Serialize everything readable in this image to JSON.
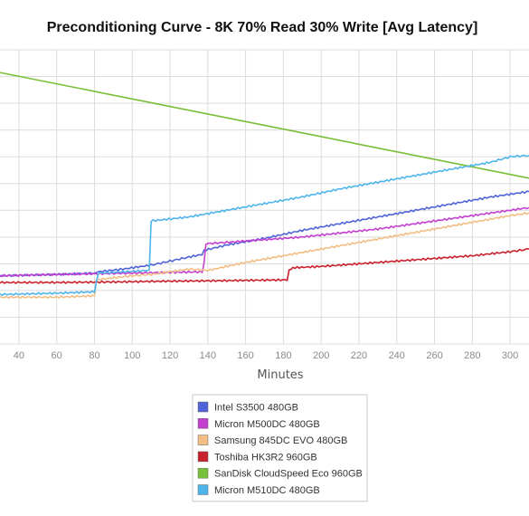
{
  "chart_data": {
    "type": "line",
    "title": "Preconditioning Curve - 8K 70% Read 30% Write [Avg Latency]",
    "xlabel": "Minutes",
    "ylabel": "",
    "xlim": [
      30,
      310
    ],
    "ylim": [
      0,
      11
    ],
    "x_ticks": [
      "40",
      "60",
      "80",
      "100",
      "120",
      "140",
      "160",
      "180",
      "200",
      "220",
      "240",
      "260",
      "280",
      "300"
    ],
    "x_tick_values": [
      40,
      60,
      80,
      100,
      120,
      140,
      160,
      180,
      200,
      220,
      240,
      260,
      280,
      300
    ],
    "grid": true,
    "legend_position": "bottom-center",
    "series": [
      {
        "name": "Intel S3500 480GB",
        "color": "#4f63d9",
        "x": [
          30,
          60,
          80,
          82,
          95,
          110,
          120,
          130,
          137,
          138,
          150,
          170,
          190,
          210,
          230,
          250,
          270,
          290,
          310
        ],
        "y": [
          2.55,
          2.6,
          2.65,
          2.7,
          2.8,
          2.95,
          3.1,
          3.25,
          3.35,
          3.5,
          3.7,
          3.95,
          4.25,
          4.5,
          4.75,
          5.0,
          5.25,
          5.5,
          5.7
        ]
      },
      {
        "name": "Micron M500DC 480GB",
        "color": "#c43fd0",
        "x": [
          30,
          60,
          100,
          137,
          138,
          139,
          150,
          170,
          190,
          210,
          230,
          250,
          270,
          290,
          310
        ],
        "y": [
          2.55,
          2.6,
          2.65,
          2.7,
          3.0,
          3.75,
          3.8,
          3.9,
          4.0,
          4.15,
          4.3,
          4.5,
          4.7,
          4.9,
          5.1
        ]
      },
      {
        "name": "Samsung 845DC EVO 480GB",
        "color": "#f1bd84",
        "x": [
          30,
          60,
          80,
          81,
          100,
          110,
          130,
          140,
          160,
          180,
          200,
          220,
          240,
          260,
          280,
          300,
          310
        ],
        "y": [
          1.75,
          1.75,
          1.8,
          2.4,
          2.55,
          2.6,
          2.8,
          2.75,
          3.05,
          3.3,
          3.55,
          3.8,
          4.05,
          4.3,
          4.55,
          4.8,
          4.9
        ]
      },
      {
        "name": "Toshiba HK3R2 960GB",
        "color": "#c8202c",
        "x": [
          30,
          60,
          90,
          120,
          150,
          182,
          183,
          185,
          200,
          220,
          240,
          260,
          280,
          300,
          310
        ],
        "y": [
          2.3,
          2.3,
          2.32,
          2.35,
          2.37,
          2.4,
          2.75,
          2.85,
          2.9,
          3.0,
          3.1,
          3.2,
          3.3,
          3.45,
          3.55
        ]
      },
      {
        "name": "SanDisk CloudSpeed Eco 960GB",
        "color": "#79c03a",
        "x": [
          30,
          310
        ],
        "y": [
          10.15,
          6.2
        ]
      },
      {
        "name": "Micron M510DC 480GB",
        "color": "#4eb5ec",
        "x": [
          30,
          60,
          80,
          82,
          95,
          109,
          110,
          130,
          150,
          170,
          190,
          210,
          230,
          250,
          270,
          290,
          300,
          310
        ],
        "y": [
          1.85,
          1.9,
          1.95,
          2.65,
          2.7,
          2.75,
          4.6,
          4.75,
          5.0,
          5.25,
          5.5,
          5.8,
          6.05,
          6.3,
          6.55,
          6.8,
          7.0,
          7.05
        ]
      }
    ]
  }
}
